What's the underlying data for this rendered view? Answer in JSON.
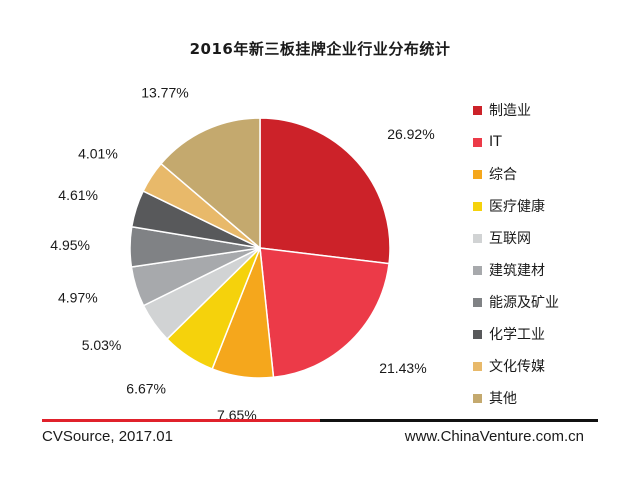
{
  "chart_data": {
    "type": "pie",
    "title": "2016年新三板挂牌企业行业分布统计",
    "slices": [
      {
        "label": "制造业",
        "value": 26.92,
        "value_label": "26.92%",
        "color": "#cc2229"
      },
      {
        "label": "IT",
        "value": 21.43,
        "value_label": "21.43%",
        "color": "#ec3a48"
      },
      {
        "label": "综合",
        "value": 7.65,
        "value_label": "7.65%",
        "color": "#f5a71c"
      },
      {
        "label": "医疗健康",
        "value": 6.67,
        "value_label": "6.67%",
        "color": "#f5d20c"
      },
      {
        "label": "互联网",
        "value": 5.03,
        "value_label": "5.03%",
        "color": "#d1d3d4"
      },
      {
        "label": "建筑建材",
        "value": 4.97,
        "value_label": "4.97%",
        "color": "#a7a9ac"
      },
      {
        "label": "能源及矿业",
        "value": 4.95,
        "value_label": "4.95%",
        "color": "#808285"
      },
      {
        "label": "化学工业",
        "value": 4.61,
        "value_label": "4.61%",
        "color": "#58595b"
      },
      {
        "label": "文化传媒",
        "value": 4.01,
        "value_label": "4.01%",
        "color": "#e8b96a"
      },
      {
        "label": "其他",
        "value": 13.77,
        "value_label": "13.77%",
        "color": "#c4a96e"
      }
    ],
    "legend_position": "right"
  },
  "footer": {
    "source": "CVSource, 2017.01",
    "website": "www.ChinaVenture.com.cn"
  }
}
